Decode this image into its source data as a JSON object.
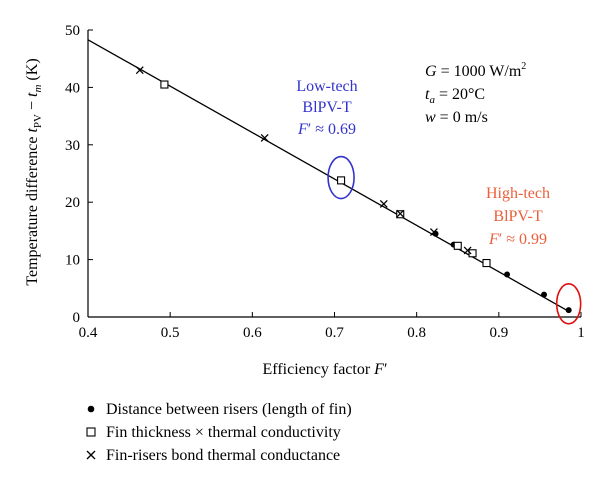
{
  "chart_data": {
    "type": "scatter",
    "xlabel": "Efficiency factor F′",
    "ylabel": "Temperature difference tₚᵥ − tₘ (K)",
    "xlim": [
      0.4,
      1.0
    ],
    "ylim": [
      0,
      50
    ],
    "x_ticks": [
      "0.4",
      "0.5",
      "0.6",
      "0.7",
      "0.8",
      "0.9",
      "1"
    ],
    "y_ticks": [
      "0",
      "10",
      "20",
      "30",
      "40",
      "50"
    ],
    "grid": false,
    "fit_line": {
      "x": [
        0.4,
        0.985
      ],
      "y": [
        48.3,
        1.0
      ]
    },
    "series": [
      {
        "name": "Distance between risers (length of fin)",
        "marker": "dot",
        "points": [
          {
            "x": 0.823,
            "y": 14.5
          },
          {
            "x": 0.845,
            "y": 12.6
          },
          {
            "x": 0.868,
            "y": 11.0
          },
          {
            "x": 0.885,
            "y": 9.4
          },
          {
            "x": 0.91,
            "y": 7.4
          },
          {
            "x": 0.955,
            "y": 3.9
          },
          {
            "x": 0.985,
            "y": 1.2
          }
        ]
      },
      {
        "name": "Fin thickness × thermal conductivity",
        "marker": "square",
        "points": [
          {
            "x": 0.493,
            "y": 40.5
          },
          {
            "x": 0.708,
            "y": 23.8
          },
          {
            "x": 0.78,
            "y": 17.9
          },
          {
            "x": 0.85,
            "y": 12.4
          },
          {
            "x": 0.868,
            "y": 11.1
          },
          {
            "x": 0.885,
            "y": 9.4
          }
        ]
      },
      {
        "name": "Fin-risers bond thermal conductance",
        "marker": "cross",
        "points": [
          {
            "x": 0.463,
            "y": 43.0
          },
          {
            "x": 0.615,
            "y": 31.2
          },
          {
            "x": 0.76,
            "y": 19.7
          },
          {
            "x": 0.78,
            "y": 18.0
          },
          {
            "x": 0.821,
            "y": 14.8
          },
          {
            "x": 0.862,
            "y": 11.6
          }
        ]
      }
    ],
    "conditions": {
      "line1_main": "G = 1000 W/m",
      "line1_sup": "2",
      "line2_t": "t",
      "line2_sub": "a",
      "line2_rest": " = 20°C",
      "line3": "w = 0 m/s"
    },
    "annotations": {
      "low": {
        "line1": "Low-tech",
        "line2": "BlPV-T",
        "line3": "F′ ≈ 0.69",
        "color": "#3333cc",
        "ellipse_x": 0.708,
        "ellipse_y": 24.3
      },
      "high": {
        "line1": "High-tech",
        "line2": "BlPV-T",
        "line3": "F′ ≈ 0.99",
        "color": "#e8603c",
        "ellipse_ring_color": "#dd1111",
        "ellipse_x": 0.985,
        "ellipse_y": 2.3
      }
    }
  }
}
